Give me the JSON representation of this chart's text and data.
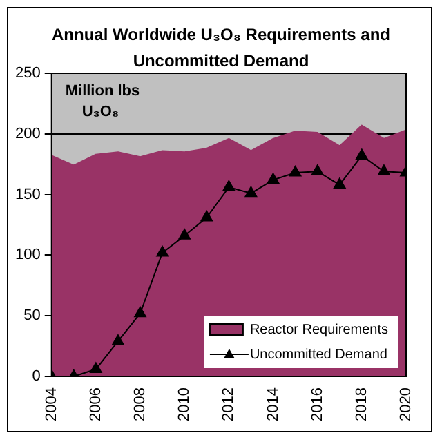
{
  "chart_data": {
    "type": "area",
    "title": "Annual Worldwide U₃O₈ Requirements and Uncommitted Demand",
    "annotations": [
      "Million lbs\nU₃O₈"
    ],
    "x": [
      2004,
      2005,
      2006,
      2007,
      2008,
      2009,
      2010,
      2011,
      2012,
      2013,
      2014,
      2015,
      2016,
      2017,
      2018,
      2019,
      2020
    ],
    "series": [
      {
        "name": "Reactor Requirements",
        "color": "#993366",
        "values": [
          182,
          174,
          183,
          185,
          181,
          186,
          185,
          188,
          196,
          186,
          196,
          202,
          201,
          190,
          207,
          196,
          203
        ]
      },
      {
        "name": "Uncommitted Demand",
        "type": "line",
        "color": "#000000",
        "marker": "triangle",
        "values": [
          0,
          0,
          6,
          29,
          52,
          102,
          116,
          131,
          156,
          151,
          162,
          168,
          169,
          158,
          182,
          169,
          168
        ]
      }
    ],
    "xlim": [
      2004,
      2020
    ],
    "xticks": [
      2004,
      2006,
      2008,
      2010,
      2012,
      2014,
      2016,
      2018,
      2020
    ],
    "ylim": [
      0,
      250
    ],
    "yticks": [
      0,
      50,
      100,
      150,
      200,
      250
    ],
    "grid": "y",
    "legend": "bottom right"
  }
}
